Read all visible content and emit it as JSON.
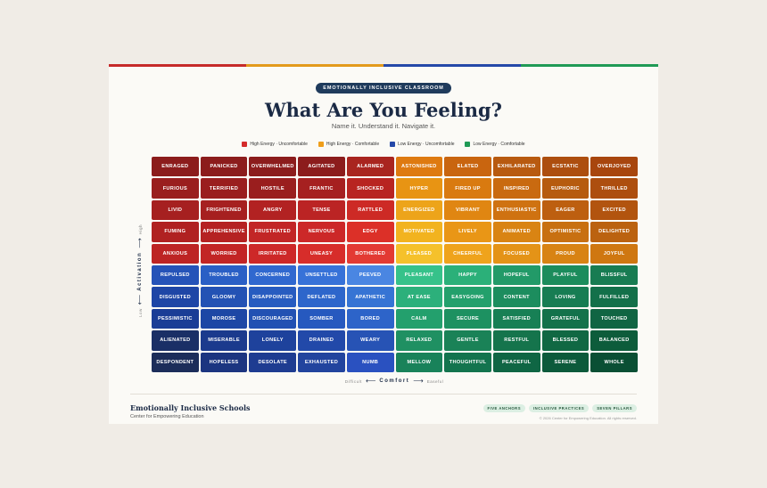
{
  "colors": {
    "page_bg": "#f0ece6",
    "topbar": [
      "#c62a2a",
      "#e39a1b",
      "#2448a8",
      "#1f9a55"
    ],
    "cells": [
      [
        "#8c1c1c",
        "#8c1c1c",
        "#8c1c1c",
        "#8c1c1c",
        "#a9251f",
        "#de7a10",
        "#c9650f",
        "#b85a10",
        "#ad4e0f",
        "#a8460e"
      ],
      [
        "#9a1e1e",
        "#9a1e1e",
        "#9a1e1e",
        "#a62020",
        "#b82421",
        "#e89413",
        "#d97a10",
        "#c96a10",
        "#b65b0f",
        "#ad4e0f"
      ],
      [
        "#a62020",
        "#a62020",
        "#b22222",
        "#bb2424",
        "#cd2a25",
        "#eda41a",
        "#e08612",
        "#cf7211",
        "#bd5f10",
        "#b2540f"
      ],
      [
        "#b02121",
        "#b52222",
        "#c22626",
        "#cc2828",
        "#dc3028",
        "#f2b31f",
        "#e99616",
        "#d98413",
        "#c87011",
        "#bb6210"
      ],
      [
        "#bd2424",
        "#c22525",
        "#cd2828",
        "#d72d2a",
        "#e33a33",
        "#f5c12b",
        "#efa31c",
        "#e49317",
        "#d88313",
        "#cf7711"
      ],
      [
        "#2553b8",
        "#2a5fc5",
        "#3068cf",
        "#3772d8",
        "#4a86e2",
        "#36c28a",
        "#2bb079",
        "#229a68",
        "#1c8c5c",
        "#187c52"
      ],
      [
        "#1e46a6",
        "#2352b4",
        "#275cc0",
        "#2d66cb",
        "#3674d4",
        "#2cb07b",
        "#23a06c",
        "#1c8d5e",
        "#177d53",
        "#13704a"
      ],
      [
        "#1a3d96",
        "#1d47a5",
        "#2251b3",
        "#2659bf",
        "#2d64c9",
        "#23a06d",
        "#1d9161",
        "#178055",
        "#13724b",
        "#106543"
      ],
      [
        "#1a2f66",
        "#1b3a8d",
        "#1e429c",
        "#2249a9",
        "#2753b5",
        "#1f9062",
        "#1a8257",
        "#15744c",
        "#106843",
        "#0d5c3b"
      ],
      [
        "#1c2d5a",
        "#1c3580",
        "#1e3c91",
        "#22449e",
        "#2a51c0",
        "#19825a",
        "#13744e",
        "#0f6644",
        "#0c5a3b",
        "#0a4f34"
      ]
    ],
    "legend": [
      "#d42b2b",
      "#ef9e1a",
      "#2448a8",
      "#1f9a55"
    ]
  },
  "badge": "Emotionally Inclusive Classroom",
  "title": "What Are You Feeling?",
  "subtitle": "Name it. Understand it. Navigate it.",
  "legend": [
    "High Energy · Uncomfortable",
    "High Energy · Comfortable",
    "Low Energy · Uncomfortable",
    "Low Energy · Comfortable"
  ],
  "grid": [
    [
      "Enraged",
      "Panicked",
      "Overwhelmed",
      "Agitated",
      "Alarmed",
      "Astonished",
      "Elated",
      "Exhilarated",
      "Ecstatic",
      "Overjoyed"
    ],
    [
      "Furious",
      "Terrified",
      "Hostile",
      "Frantic",
      "Shocked",
      "Hyper",
      "Fired Up",
      "Inspired",
      "Euphoric",
      "Thrilled"
    ],
    [
      "Livid",
      "Frightened",
      "Angry",
      "Tense",
      "Rattled",
      "Energized",
      "Vibrant",
      "Enthusiastic",
      "Eager",
      "Excited"
    ],
    [
      "Fuming",
      "Apprehensive",
      "Frustrated",
      "Nervous",
      "Edgy",
      "Motivated",
      "Lively",
      "Animated",
      "Optimistic",
      "Delighted"
    ],
    [
      "Anxious",
      "Worried",
      "Irritated",
      "Uneasy",
      "Bothered",
      "Pleased",
      "Cheerful",
      "Focused",
      "Proud",
      "Joyful"
    ],
    [
      "Repulsed",
      "Troubled",
      "Concerned",
      "Unsettled",
      "Peeved",
      "Pleasant",
      "Happy",
      "Hopeful",
      "Playful",
      "Blissful"
    ],
    [
      "Disgusted",
      "Gloomy",
      "Disappointed",
      "Deflated",
      "Apathetic",
      "At Ease",
      "Easygoing",
      "Content",
      "Loving",
      "Fulfilled"
    ],
    [
      "Pessimistic",
      "Morose",
      "Discouraged",
      "Somber",
      "Bored",
      "Calm",
      "Secure",
      "Satisfied",
      "Grateful",
      "Touched"
    ],
    [
      "Alienated",
      "Miserable",
      "Lonely",
      "Drained",
      "Weary",
      "Relaxed",
      "Gentle",
      "Restful",
      "Blessed",
      "Balanced"
    ],
    [
      "Despondent",
      "Hopeless",
      "Desolate",
      "Exhausted",
      "Numb",
      "Mellow",
      "Thoughtful",
      "Peaceful",
      "Serene",
      "Whole"
    ]
  ],
  "y_axis": {
    "low": "Low",
    "label": "Activation",
    "high": "High"
  },
  "x_axis": {
    "low": "Difficult",
    "label": "Comfort",
    "high": "Easeful"
  },
  "footer": {
    "title": "Emotionally Inclusive Schools",
    "subtitle": "Center for Empowering Education",
    "tags": [
      "Five Anchors",
      "Inclusive Practices",
      "Seven Pillars"
    ],
    "copyright": "© 2026 Center for Empowering Education. All rights reserved."
  }
}
